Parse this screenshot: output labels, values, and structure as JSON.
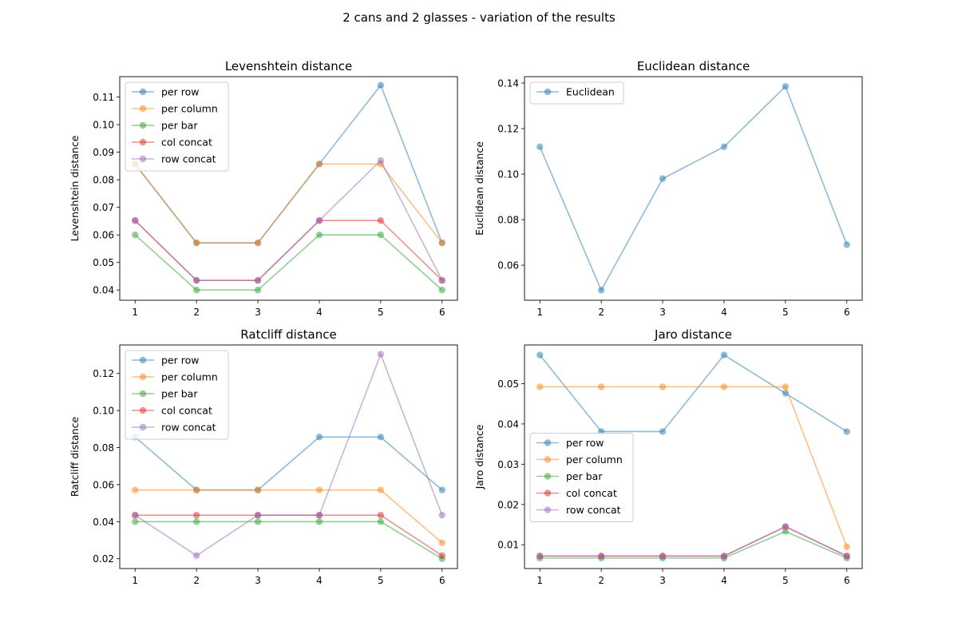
{
  "figure": {
    "title": "2 cans and 2 glasses - variation of the results"
  },
  "chart_data": [
    {
      "type": "line",
      "title": "Levenshtein distance",
      "xlabel": "",
      "ylabel": "Levenshtein distance",
      "x": [
        1,
        2,
        3,
        4,
        5,
        6
      ],
      "xlim": [
        0.75,
        6.25
      ],
      "ylim": [
        0.0363,
        0.1174
      ],
      "yticks": [
        0.04,
        0.05,
        0.06,
        0.07,
        0.08,
        0.09,
        0.1,
        0.11
      ],
      "ytick_format": 2,
      "legend": "upper-left",
      "grid": false,
      "series": [
        {
          "name": "per row",
          "color": "#1f77b4",
          "values": [
            0.0857,
            0.0571,
            0.0571,
            0.0857,
            0.1143,
            0.0571
          ]
        },
        {
          "name": "per column",
          "color": "#ff7f0e",
          "values": [
            0.0857,
            0.0571,
            0.0571,
            0.0857,
            0.0857,
            0.0571
          ]
        },
        {
          "name": "per bar",
          "color": "#2ca02c",
          "values": [
            0.06,
            0.04,
            0.04,
            0.06,
            0.06,
            0.04
          ]
        },
        {
          "name": "col concat",
          "color": "#d62728",
          "values": [
            0.0652,
            0.0435,
            0.0435,
            0.0652,
            0.0652,
            0.0435
          ]
        },
        {
          "name": "row concat",
          "color": "#9467bd",
          "values": [
            0.0652,
            0.0435,
            0.0435,
            0.0652,
            0.087,
            0.0435
          ]
        }
      ]
    },
    {
      "type": "line",
      "title": "Euclidean distance",
      "xlabel": "",
      "ylabel": "Euclidean distance",
      "x": [
        1,
        2,
        3,
        4,
        5,
        6
      ],
      "xlim": [
        0.75,
        6.25
      ],
      "ylim": [
        0.0446,
        0.1428
      ],
      "yticks": [
        0.06,
        0.08,
        0.1,
        0.12,
        0.14
      ],
      "ytick_format": 2,
      "legend": "upper-left",
      "grid": false,
      "series": [
        {
          "name": "Euclidean",
          "color": "#1f77b4",
          "values": [
            0.112,
            0.049,
            0.098,
            0.112,
            0.1385,
            0.069
          ]
        }
      ]
    },
    {
      "type": "line",
      "title": "Ratcliff distance",
      "xlabel": "",
      "ylabel": "Ratcliff distance",
      "x": [
        1,
        2,
        3,
        4,
        5,
        6
      ],
      "xlim": [
        0.75,
        6.25
      ],
      "ylim": [
        0.0147,
        0.1354
      ],
      "yticks": [
        0.02,
        0.04,
        0.06,
        0.08,
        0.1,
        0.12
      ],
      "ytick_format": 2,
      "legend": "upper-left",
      "grid": false,
      "series": [
        {
          "name": "per row",
          "color": "#1f77b4",
          "values": [
            0.0857,
            0.0571,
            0.0571,
            0.0857,
            0.0857,
            0.0571
          ]
        },
        {
          "name": "per column",
          "color": "#ff7f0e",
          "values": [
            0.0571,
            0.0571,
            0.0571,
            0.0571,
            0.0571,
            0.0286
          ]
        },
        {
          "name": "per bar",
          "color": "#2ca02c",
          "values": [
            0.04,
            0.04,
            0.04,
            0.04,
            0.04,
            0.02
          ]
        },
        {
          "name": "col concat",
          "color": "#d62728",
          "values": [
            0.0435,
            0.0435,
            0.0435,
            0.0435,
            0.0435,
            0.0217
          ]
        },
        {
          "name": "row concat",
          "color": "#9467bd",
          "values": [
            0.0435,
            0.0217,
            0.0435,
            0.0435,
            0.1304,
            0.0435
          ]
        }
      ]
    },
    {
      "type": "line",
      "title": "Jaro distance",
      "xlabel": "",
      "ylabel": "Jaro distance",
      "x": [
        1,
        2,
        3,
        4,
        5,
        6
      ],
      "xlim": [
        0.75,
        6.25
      ],
      "ylim": [
        0.0041,
        0.0596
      ],
      "yticks": [
        0.01,
        0.02,
        0.03,
        0.04,
        0.05
      ],
      "ytick_format": 2,
      "legend": "center-left",
      "grid": false,
      "series": [
        {
          "name": "per row",
          "color": "#1f77b4",
          "values": [
            0.0571,
            0.0381,
            0.0381,
            0.0571,
            0.0476,
            0.0381
          ]
        },
        {
          "name": "per column",
          "color": "#ff7f0e",
          "values": [
            0.0492,
            0.0492,
            0.0492,
            0.0492,
            0.0492,
            0.0095
          ]
        },
        {
          "name": "per bar",
          "color": "#2ca02c",
          "values": [
            0.0067,
            0.0067,
            0.0067,
            0.0067,
            0.0133,
            0.0067
          ]
        },
        {
          "name": "col concat",
          "color": "#d62728",
          "values": [
            0.0072,
            0.0072,
            0.0072,
            0.0072,
            0.0145,
            0.0072
          ]
        },
        {
          "name": "row concat",
          "color": "#9467bd",
          "values": [
            0.0072,
            0.0072,
            0.0072,
            0.0072,
            0.0145,
            0.0072
          ]
        }
      ]
    }
  ]
}
